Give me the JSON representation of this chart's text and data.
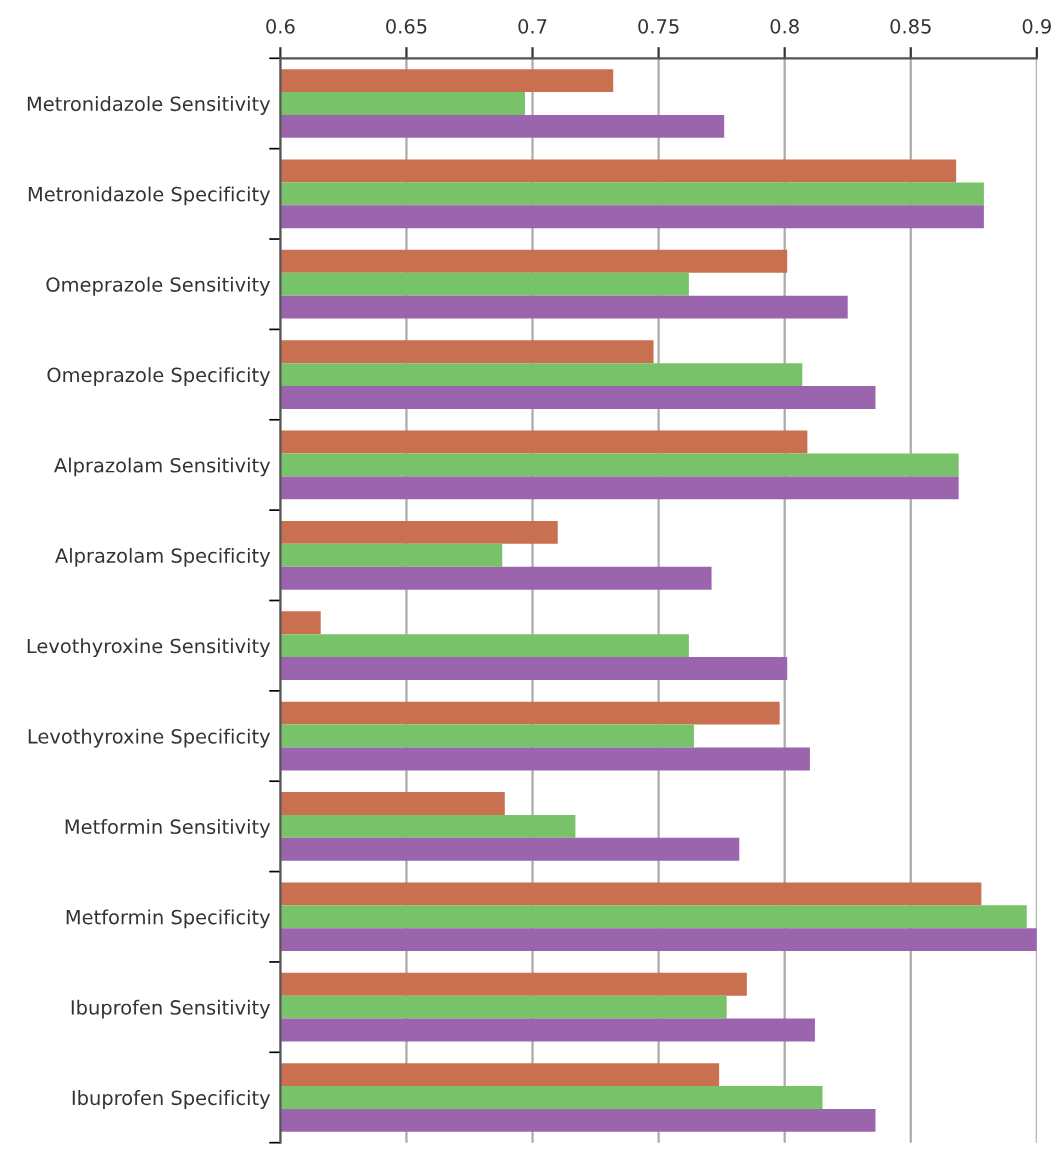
{
  "chart_data": {
    "type": "bar",
    "orientation": "horizontal",
    "categories": [
      "Metronidazole Sensitivity",
      "Metronidazole Specificity",
      "Omeprazole Sensitivity",
      "Omeprazole Specificity",
      "Alprazolam Sensitivity",
      "Alprazolam Specificity",
      "Levothyroxine Sensitivity",
      "Levothyroxine Specificity",
      "Metformin Sensitivity",
      "Metformin Specificity",
      "Ibuprofen Sensitivity",
      "Ibuprofen Specificity"
    ],
    "series": [
      {
        "color": "#c8704f",
        "values": [
          0.732,
          0.868,
          0.801,
          0.748,
          0.809,
          0.71,
          0.616,
          0.798,
          0.689,
          0.878,
          0.785,
          0.774
        ]
      },
      {
        "color": "#78c26a",
        "values": [
          0.697,
          0.879,
          0.762,
          0.807,
          0.869,
          0.688,
          0.762,
          0.764,
          0.717,
          0.896,
          0.777,
          0.815
        ]
      },
      {
        "color": "#9b65ae",
        "values": [
          0.776,
          0.879,
          0.825,
          0.836,
          0.869,
          0.771,
          0.801,
          0.81,
          0.782,
          0.9,
          0.812,
          0.836
        ]
      }
    ],
    "xlim": [
      0.6,
      0.9
    ],
    "xticks": [
      0.6,
      0.65,
      0.7,
      0.75,
      0.8,
      0.85,
      0.9
    ],
    "grid": "x"
  }
}
